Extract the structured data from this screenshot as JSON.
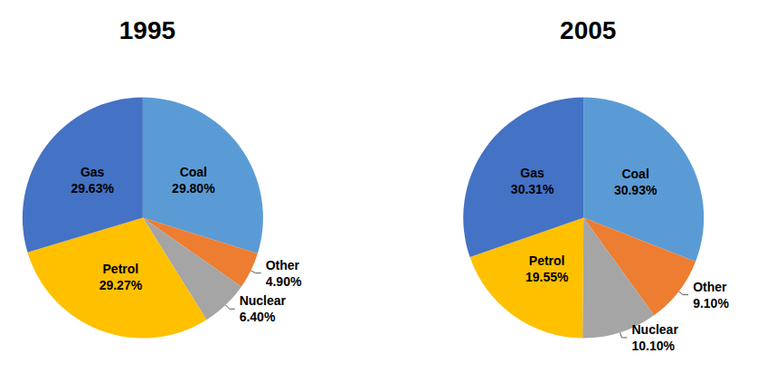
{
  "chart_data": [
    {
      "type": "pie",
      "title": "1995",
      "categories": [
        "Coal",
        "Other",
        "Nuclear",
        "Petrol",
        "Gas"
      ],
      "values": [
        29.8,
        4.9,
        6.4,
        29.27,
        29.63
      ],
      "value_labels": [
        "29.80%",
        "4.90%",
        "6.40%",
        "29.27%",
        "29.63%"
      ],
      "colors": [
        "#5b9bd5",
        "#ed7d31",
        "#a5a5a5",
        "#ffc000",
        "#4472c4"
      ],
      "data_labels": true
    },
    {
      "type": "pie",
      "title": "2005",
      "categories": [
        "Coal",
        "Other",
        "Nuclear",
        "Petrol",
        "Gas"
      ],
      "values": [
        30.93,
        9.1,
        10.1,
        19.55,
        30.31
      ],
      "value_labels": [
        "30.93%",
        "9.10%",
        "10.10%",
        "19.55%",
        "30.31%"
      ],
      "colors": [
        "#5b9bd5",
        "#ed7d31",
        "#a5a5a5",
        "#ffc000",
        "#4472c4"
      ],
      "data_labels": true
    }
  ]
}
